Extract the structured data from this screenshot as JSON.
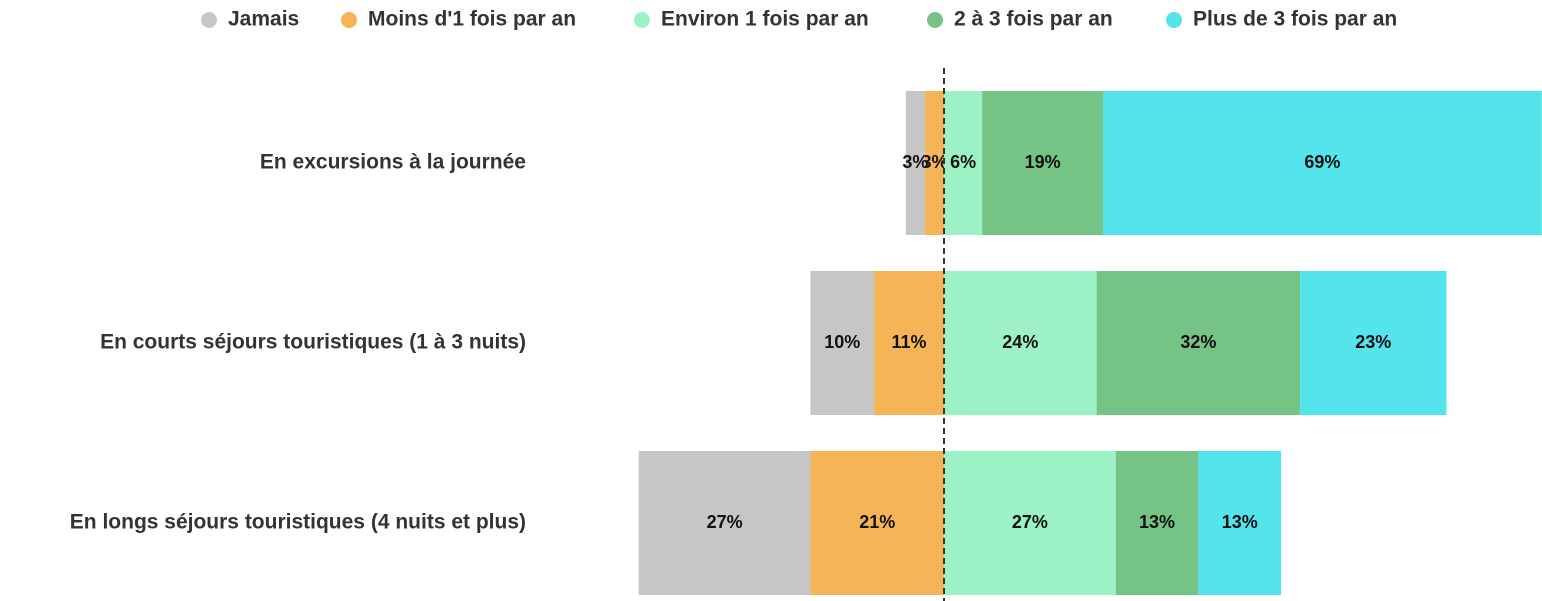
{
  "chart_data": {
    "type": "diverging_bar",
    "categories": [
      "En excursions à la journée",
      "En courts séjours touristiques (1 à 3 nuits)",
      "En longs séjours touristiques (4 nuits et plus)"
    ],
    "series": [
      {
        "name": "Jamais",
        "color": "#c6c6c6",
        "values": [
          3,
          10,
          27
        ],
        "value_labels": [
          "3%",
          "10%",
          "27%"
        ]
      },
      {
        "name": "Moins d'1 fois par an",
        "color": "#f5b556",
        "values": [
          3,
          11,
          21
        ],
        "value_labels": [
          "3%",
          "11%",
          "21%"
        ]
      },
      {
        "name": "Environ 1 fois par an",
        "color": "#9cf2c4",
        "values": [
          6,
          24,
          27
        ],
        "value_labels": [
          "6%",
          "24%",
          "27%"
        ]
      },
      {
        "name": "2 à 3 fois par an",
        "color": "#76c386",
        "values": [
          19,
          32,
          13
        ],
        "value_labels": [
          "19%",
          "32%",
          "13%"
        ]
      },
      {
        "name": "Plus de 3 fois par an",
        "color": "#54e4eb",
        "values": [
          69,
          23,
          13
        ],
        "value_labels": [
          "69%",
          "23%",
          "13%"
        ]
      }
    ],
    "legend": "top"
  }
}
